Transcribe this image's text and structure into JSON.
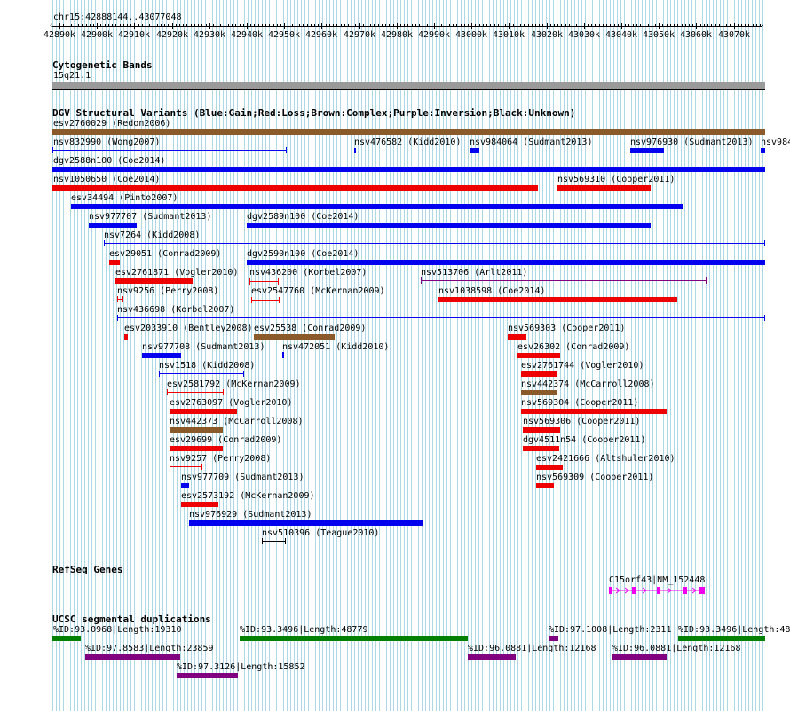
{
  "ruler": {
    "position": "chr15:42888144..43077048",
    "ticks": [
      "42890k",
      "42900k",
      "42910k",
      "42920k",
      "42930k",
      "42940k",
      "42950k",
      "42960k",
      "42970k",
      "42980k",
      "42990k",
      "43000k",
      "43010k",
      "43020k",
      "43030k",
      "43040k",
      "43050k",
      "43060k",
      "43070k"
    ]
  },
  "colors": {
    "gain": "#0000ee",
    "loss": "#ee0000",
    "complex": "#8b5a2b",
    "inversion": "#800080",
    "unknown": "#000000",
    "green": "#008000",
    "purple": "#800080",
    "gene": "#ee00ee",
    "grid": "#add8e6"
  },
  "cytoband": {
    "title": "Cytogenetic Bands",
    "band": "15q21.1"
  },
  "dgv": {
    "title": "DGV Structural Variants (Blue:Gain;Red:Loss;Brown:Complex;Purple:Inversion;Black:Unknown)",
    "features": [
      {
        "label": "esv2760029 (Redon2006)",
        "type": "complex",
        "style": "bar"
      },
      {
        "label": "nsv832990 (Wong2007)",
        "type": "gain",
        "style": "line"
      },
      {
        "label": "nsv476582 (Kidd2010)",
        "type": "gain",
        "style": "bar"
      },
      {
        "label": "nsv984064 (Sudmant2013)",
        "type": "gain",
        "style": "bar"
      },
      {
        "label": "nsv976930 (Sudmant2013)",
        "type": "gain",
        "style": "bar"
      },
      {
        "label": "nsv984",
        "type": "gain",
        "style": "bar"
      },
      {
        "label": "dgv2588n100 (Coe2014)",
        "type": "gain",
        "style": "bar"
      },
      {
        "label": "nsv1050650 (Coe2014)",
        "type": "loss",
        "style": "bar"
      },
      {
        "label": "nsv569310 (Cooper2011)",
        "type": "loss",
        "style": "bar"
      },
      {
        "label": "esv34494 (Pinto2007)",
        "type": "gain",
        "style": "bar"
      },
      {
        "label": "nsv977707 (Sudmant2013)",
        "type": "gain",
        "style": "bar"
      },
      {
        "label": "dgv2589n100 (Coe2014)",
        "type": "gain",
        "style": "bar"
      },
      {
        "label": "nsv7264 (Kidd2008)",
        "type": "gain",
        "style": "line"
      },
      {
        "label": "esv29051 (Conrad2009)",
        "type": "loss",
        "style": "bar"
      },
      {
        "label": "dgv2590n100 (Coe2014)",
        "type": "gain",
        "style": "bar"
      },
      {
        "label": "esv2761871 (Vogler2010)",
        "type": "loss",
        "style": "bar"
      },
      {
        "label": "nsv436200 (Korbel2007)",
        "type": "loss",
        "style": "line"
      },
      {
        "label": "nsv513706 (Arlt2011)",
        "type": "inversion",
        "style": "line"
      },
      {
        "label": "nsv9256 (Perry2008)",
        "type": "loss",
        "style": "line"
      },
      {
        "label": "esv2547760 (McKernan2009)",
        "type": "loss",
        "style": "line"
      },
      {
        "label": "nsv1038598 (Coe2014)",
        "type": "loss",
        "style": "bar"
      },
      {
        "label": "nsv436698 (Korbel2007)",
        "type": "gain",
        "style": "line"
      },
      {
        "label": "esv2033910 (Bentley2008)",
        "type": "loss",
        "style": "bar"
      },
      {
        "label": "esv25538 (Conrad2009)",
        "type": "complex",
        "style": "bar"
      },
      {
        "label": "nsv569303 (Cooper2011)",
        "type": "loss",
        "style": "bar"
      },
      {
        "label": "nsv977708 (Sudmant2013)",
        "type": "gain",
        "style": "bar"
      },
      {
        "label": "nsv472051 (Kidd2010)",
        "type": "gain",
        "style": "line"
      },
      {
        "label": "esv26302 (Conrad2009)",
        "type": "loss",
        "style": "bar"
      },
      {
        "label": "nsv1518 (Kidd2008)",
        "type": "gain",
        "style": "line"
      },
      {
        "label": "esv2761744 (Vogler2010)",
        "type": "loss",
        "style": "bar"
      },
      {
        "label": "esv2581792 (McKernan2009)",
        "type": "loss",
        "style": "line"
      },
      {
        "label": "nsv442374 (McCarroll2008)",
        "type": "complex",
        "style": "bar"
      },
      {
        "label": "esv2763097 (Vogler2010)",
        "type": "loss",
        "style": "bar"
      },
      {
        "label": "nsv569304 (Cooper2011)",
        "type": "loss",
        "style": "bar"
      },
      {
        "label": "nsv442373 (McCarroll2008)",
        "type": "complex",
        "style": "bar"
      },
      {
        "label": "nsv569306 (Cooper2011)",
        "type": "loss",
        "style": "bar"
      },
      {
        "label": "esv29699 (Conrad2009)",
        "type": "loss",
        "style": "bar"
      },
      {
        "label": "dgv4511n54 (Cooper2011)",
        "type": "loss",
        "style": "bar"
      },
      {
        "label": "nsv9257 (Perry2008)",
        "type": "loss",
        "style": "line"
      },
      {
        "label": "esv2421666 (Altshuler2010)",
        "type": "loss",
        "style": "bar"
      },
      {
        "label": "nsv977709 (Sudmant2013)",
        "type": "gain",
        "style": "bar"
      },
      {
        "label": "nsv569309 (Cooper2011)",
        "type": "loss",
        "style": "bar"
      },
      {
        "label": "esv2573192 (McKernan2009)",
        "type": "loss",
        "style": "bar"
      },
      {
        "label": "nsv976929 (Sudmant2013)",
        "type": "gain",
        "style": "bar"
      },
      {
        "label": "nsv510396 (Teague2010)",
        "type": "unknown",
        "style": "line"
      }
    ]
  },
  "refseq": {
    "title": "RefSeq Genes",
    "gene": "C15orf43|NM_152448"
  },
  "segdups": {
    "title": "UCSC segmental duplications",
    "features": [
      {
        "label": "%ID:93.0968|Length:19310",
        "type": "green"
      },
      {
        "label": "%ID:93.3496|Length:48779",
        "type": "green"
      },
      {
        "label": "%ID:97.1008|Length:2311",
        "type": "purple"
      },
      {
        "label": "%ID:93.3496|Length:48",
        "type": "green"
      },
      {
        "label": "%ID:97.8583|Length:23859",
        "type": "purple"
      },
      {
        "label": "%ID:96.0881|Length:12168",
        "type": "purple"
      },
      {
        "label": "%ID:96.0881|Length:12168",
        "type": "purple"
      },
      {
        "label": "%ID:97.3126|Length:15852",
        "type": "purple"
      }
    ]
  }
}
